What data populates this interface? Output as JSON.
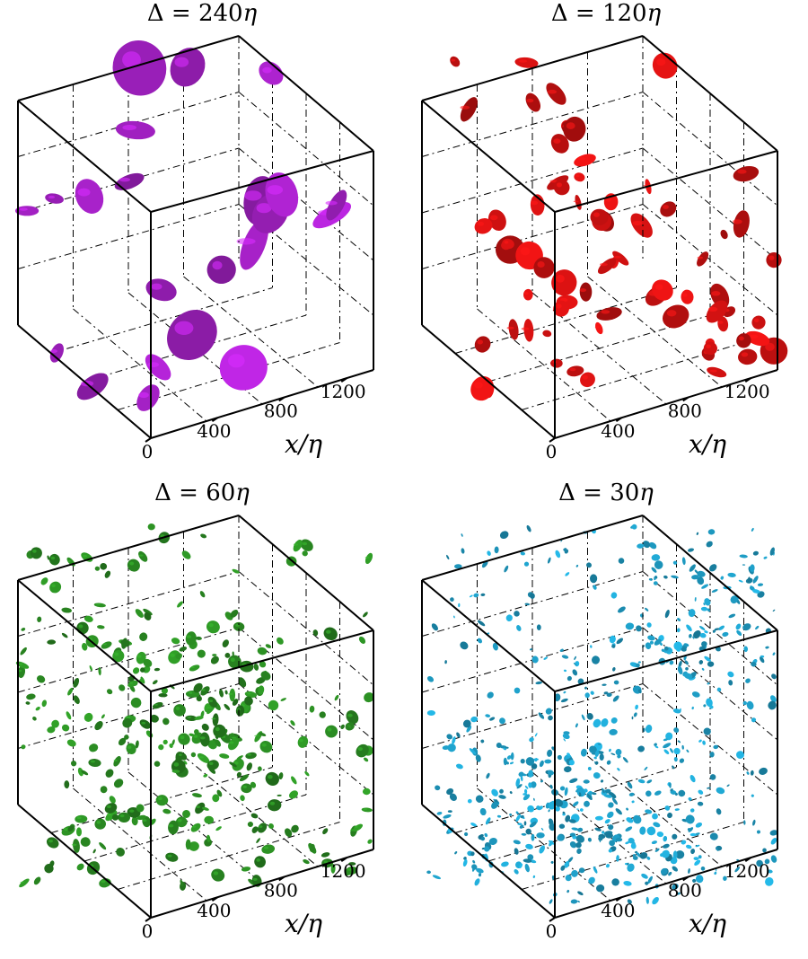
{
  "figure": {
    "axis_label": "x/η",
    "ticks": [
      "0",
      "400",
      "800",
      "1200"
    ],
    "panels": [
      {
        "title_prefix": "Δ = ",
        "title_value": "240",
        "title_unit": "η",
        "color": "#a020c0",
        "blob_scale": "large",
        "density": 22
      },
      {
        "title_prefix": "Δ = ",
        "title_value": "120",
        "title_unit": "η",
        "color": "#cc1111",
        "blob_scale": "medium",
        "density": 70
      },
      {
        "title_prefix": "Δ = ",
        "title_value": "60",
        "title_unit": "η",
        "color": "#2a8a22",
        "blob_scale": "small",
        "density": 320
      },
      {
        "title_prefix": "Δ = ",
        "title_value": "30",
        "title_unit": "η",
        "color": "#1e9cc4",
        "blob_scale": "tiny",
        "density": 650
      }
    ]
  }
}
